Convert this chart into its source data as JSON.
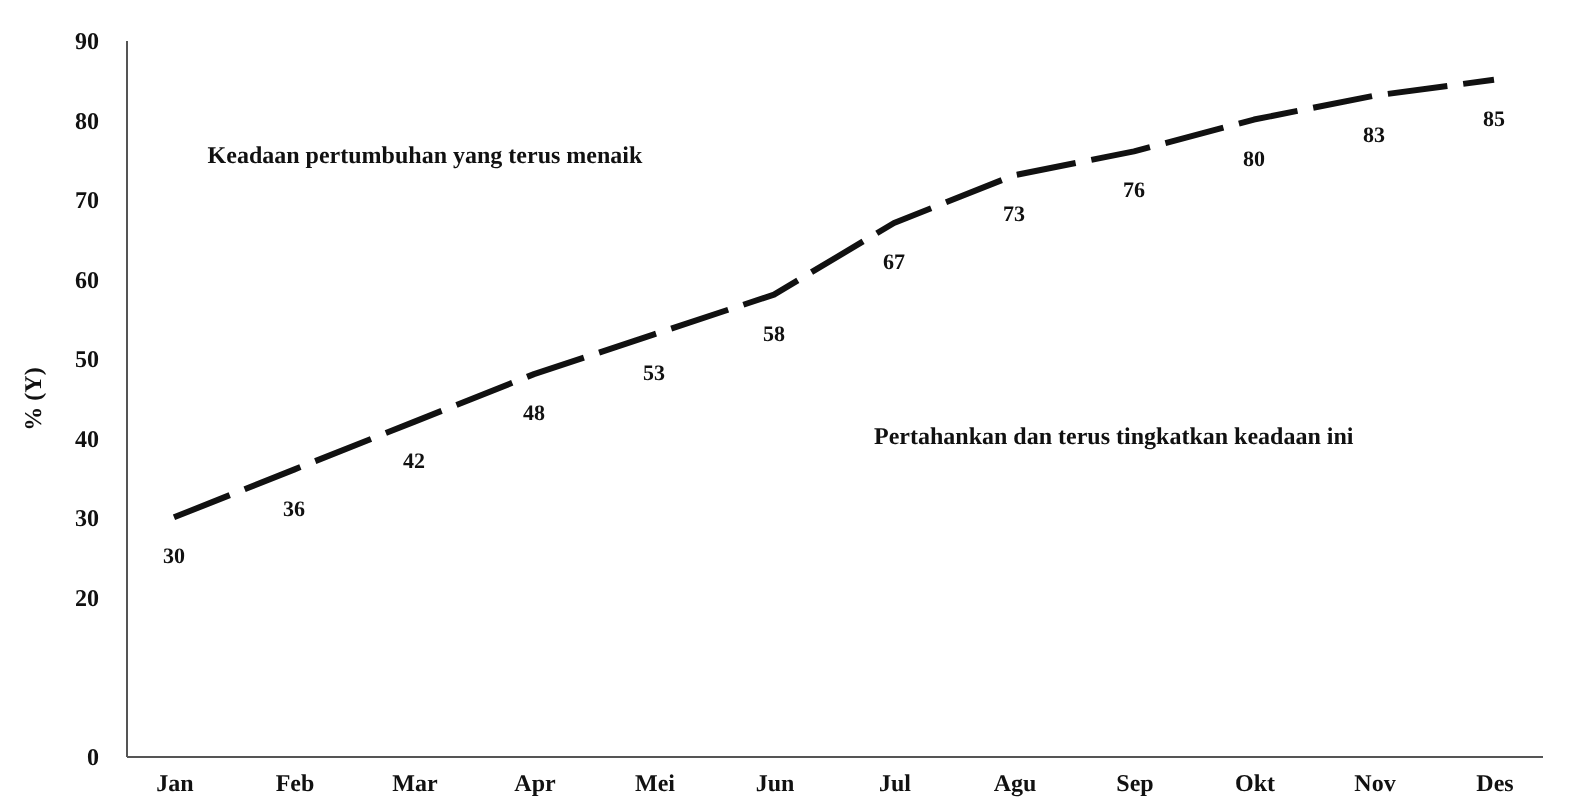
{
  "chart_data": {
    "type": "line",
    "ylabel": "% (Y)",
    "categories": [
      "Jan",
      "Feb",
      "Mar",
      "Apr",
      "Mei",
      "Jun",
      "Jul",
      "Agu",
      "Sep",
      "Okt",
      "Nov",
      "Des"
    ],
    "series": [
      {
        "color": "#111111",
        "values": [
          30,
          36,
          42,
          48,
          53,
          58,
          67,
          73,
          76,
          80,
          83,
          85
        ]
      }
    ],
    "ylim": [
      0,
      90
    ],
    "yticks": [
      0,
      20,
      30,
      40,
      50,
      60,
      70,
      80,
      90
    ],
    "data_labels": true,
    "line_style": "dashed",
    "grid": false,
    "annotations": [
      "Keadaan pertumbuhan yang terus menaik",
      "Pertahankan dan terus tingkatkan keadaan ini"
    ]
  }
}
